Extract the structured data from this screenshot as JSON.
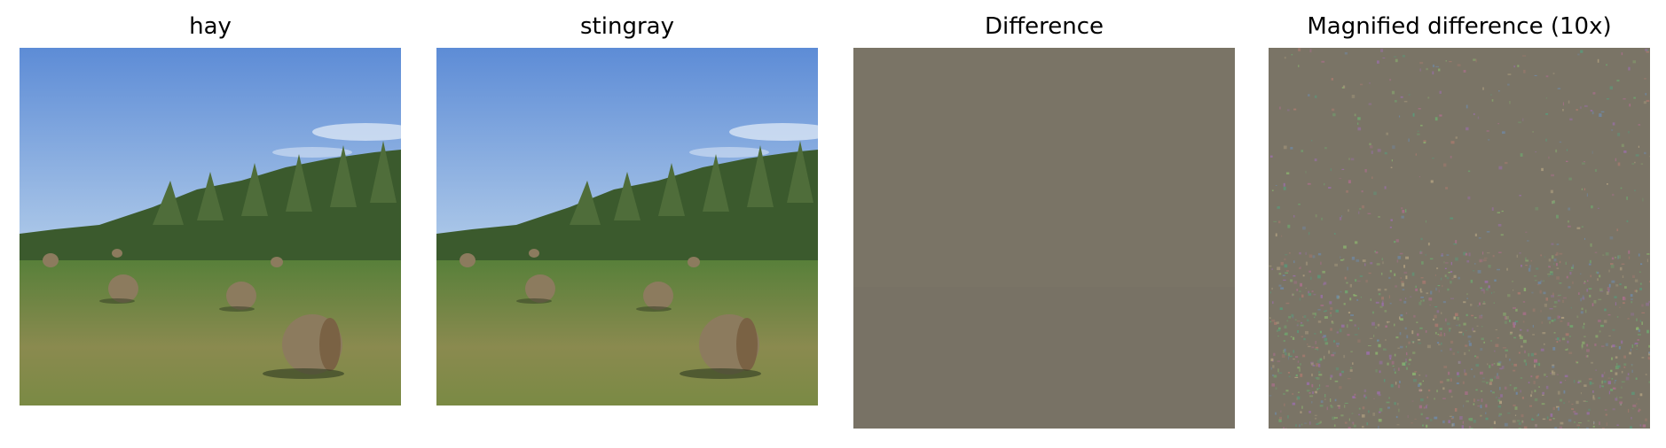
{
  "panels": [
    {
      "title": "hay",
      "content": "photo-original"
    },
    {
      "title": "stingray",
      "content": "photo-adversarial"
    },
    {
      "title": "Difference",
      "content": "difference-map"
    },
    {
      "title": "Magnified difference (10x)",
      "content": "magnified-difference-map"
    }
  ],
  "colors": {
    "sky_top": "#5f8fd8",
    "sky_bottom": "#a9c6e8",
    "grass": "#6f8f43",
    "dry_grass": "#9a8a55",
    "trees": "#3d5a2e",
    "bale": "#8c7b5e",
    "difference_gray": "#7a7466"
  }
}
